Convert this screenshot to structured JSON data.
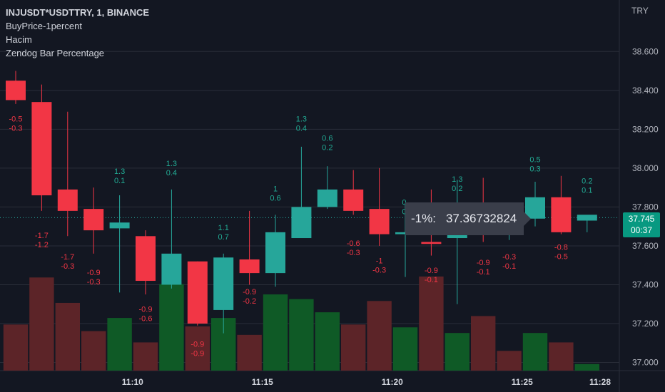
{
  "header": {
    "symbol": "INJUSDT*USDTTRY, 1, BINANCE",
    "indicators": [
      "BuyPrice-1percent",
      "Hacim",
      "Zendog Bar Percentage"
    ]
  },
  "price_axis": {
    "currency": "TRY"
  },
  "current_price": {
    "value": "37.745",
    "countdown": "00:37"
  },
  "tooltip": {
    "label": "-1%:",
    "value": "37.36732824"
  },
  "colors": {
    "background": "#131722",
    "up": "#26a69a",
    "down": "#f23645",
    "grid": "#2a2e39"
  },
  "chart_data": {
    "type": "candlestick",
    "ylim": [
      36.98,
      38.7
    ],
    "y_ticks": [
      "38.600",
      "38.400",
      "38.200",
      "38.000",
      "37.800",
      "37.600",
      "37.400",
      "37.200",
      "37.000"
    ],
    "y_tick_values": [
      38.6,
      38.4,
      38.2,
      38.0,
      37.8,
      37.6,
      37.4,
      37.2,
      37.0
    ],
    "x_ticks": [
      {
        "label": "11:10",
        "index": 4.5
      },
      {
        "label": "11:15",
        "index": 9.5
      },
      {
        "label": "11:20",
        "index": 14.5
      },
      {
        "label": "11:25",
        "index": 19.5
      },
      {
        "label": "11:28",
        "index": 22.5
      }
    ],
    "candles": [
      {
        "o": 38.45,
        "h": 38.5,
        "l": 38.33,
        "c": 38.35
      },
      {
        "o": 38.34,
        "h": 38.43,
        "l": 37.78,
        "c": 37.86
      },
      {
        "o": 37.89,
        "h": 38.29,
        "l": 37.65,
        "c": 37.78
      },
      {
        "o": 37.79,
        "h": 37.9,
        "l": 37.56,
        "c": 37.68
      },
      {
        "o": 37.69,
        "h": 37.86,
        "l": 37.36,
        "c": 37.72
      },
      {
        "o": 37.65,
        "h": 37.68,
        "l": 37.35,
        "c": 37.42
      },
      {
        "o": 37.4,
        "h": 37.89,
        "l": 37.38,
        "c": 37.56
      },
      {
        "o": 37.52,
        "h": 37.52,
        "l": 37.19,
        "c": 37.2
      },
      {
        "o": 37.27,
        "h": 37.56,
        "l": 37.15,
        "c": 37.54
      },
      {
        "o": 37.53,
        "h": 37.78,
        "l": 37.4,
        "c": 37.46
      },
      {
        "o": 37.46,
        "h": 37.76,
        "l": 37.39,
        "c": 37.67
      },
      {
        "o": 37.64,
        "h": 38.11,
        "l": 37.64,
        "c": 37.8
      },
      {
        "o": 37.8,
        "h": 38.01,
        "l": 37.79,
        "c": 37.89
      },
      {
        "o": 37.89,
        "h": 37.99,
        "l": 37.76,
        "c": 37.78
      },
      {
        "o": 37.79,
        "h": 38.0,
        "l": 37.6,
        "c": 37.66
      },
      {
        "o": 37.66,
        "h": 37.82,
        "l": 37.44,
        "c": 37.67
      },
      {
        "o": 37.62,
        "h": 37.89,
        "l": 37.55,
        "c": 37.61
      },
      {
        "o": 37.64,
        "h": 37.94,
        "l": 37.3,
        "c": 37.67
      },
      {
        "o": 37.76,
        "h": 37.95,
        "l": 37.62,
        "c": 37.72
      },
      {
        "o": 37.72,
        "h": 37.82,
        "l": 37.63,
        "c": 37.74
      },
      {
        "o": 37.74,
        "h": 37.93,
        "l": 37.7,
        "c": 37.85
      },
      {
        "o": 37.85,
        "h": 37.96,
        "l": 37.66,
        "c": 37.67
      },
      {
        "o": 37.73,
        "h": 37.75,
        "l": 37.67,
        "c": 37.76
      }
    ],
    "volume": [
      {
        "v": 0.49,
        "up": false
      },
      {
        "v": 0.99,
        "up": false
      },
      {
        "v": 0.72,
        "up": false
      },
      {
        "v": 0.42,
        "up": false
      },
      {
        "v": 0.56,
        "up": true
      },
      {
        "v": 0.3,
        "up": false
      },
      {
        "v": 0.92,
        "up": true
      },
      {
        "v": 0.47,
        "up": false
      },
      {
        "v": 0.56,
        "up": true
      },
      {
        "v": 0.38,
        "up": false
      },
      {
        "v": 0.81,
        "up": true
      },
      {
        "v": 0.76,
        "up": true
      },
      {
        "v": 0.62,
        "up": true
      },
      {
        "v": 0.49,
        "up": false
      },
      {
        "v": 0.74,
        "up": false
      },
      {
        "v": 0.46,
        "up": true
      },
      {
        "v": 1.0,
        "up": false
      },
      {
        "v": 0.4,
        "up": true
      },
      {
        "v": 0.58,
        "up": false
      },
      {
        "v": 0.21,
        "up": false
      },
      {
        "v": 0.4,
        "up": true
      },
      {
        "v": 0.3,
        "up": false
      },
      {
        "v": 0.07,
        "up": true
      }
    ],
    "bar_percent_labels": [
      {
        "i": 0,
        "lines": [
          "-0.5",
          "-0.3"
        ],
        "price": 38.24,
        "up": false
      },
      {
        "i": 1,
        "lines": [
          "-1.7",
          "-1.2"
        ],
        "price": 37.64,
        "up": false
      },
      {
        "i": 2,
        "lines": [
          "-1.7",
          "-0.3"
        ],
        "price": 37.53,
        "up": false
      },
      {
        "i": 3,
        "lines": [
          "-0.9",
          "-0.3"
        ],
        "price": 37.45,
        "up": false
      },
      {
        "i": 4,
        "lines": [
          "1.3",
          "0.1"
        ],
        "price": 37.97,
        "up": true
      },
      {
        "i": 5,
        "lines": [
          "-0.9",
          "-0.6"
        ],
        "price": 37.26,
        "up": false
      },
      {
        "i": 6,
        "lines": [
          "1.3",
          "0.4"
        ],
        "price": 38.01,
        "up": true
      },
      {
        "i": 7,
        "lines": [
          "-0.9",
          "-0.9"
        ],
        "price": 37.08,
        "up": false
      },
      {
        "i": 8,
        "lines": [
          "1.1",
          "0.7"
        ],
        "price": 37.68,
        "up": true
      },
      {
        "i": 9,
        "lines": [
          "-0.9",
          "-0.2"
        ],
        "price": 37.35,
        "up": false
      },
      {
        "i": 10,
        "lines": [
          "1",
          "0.6"
        ],
        "price": 37.88,
        "up": true
      },
      {
        "i": 11,
        "lines": [
          "1.3",
          "0.4"
        ],
        "price": 38.24,
        "up": true
      },
      {
        "i": 12,
        "lines": [
          "0.6",
          "0.2"
        ],
        "price": 38.14,
        "up": true
      },
      {
        "i": 13,
        "lines": [
          "-0.6",
          "-0.3"
        ],
        "price": 37.6,
        "up": false
      },
      {
        "i": 14,
        "lines": [
          "-1",
          "-0.3"
        ],
        "price": 37.51,
        "up": false
      },
      {
        "i": 15,
        "lines": [
          "0.",
          "0."
        ],
        "price": 37.81,
        "up": true
      },
      {
        "i": 16,
        "lines": [
          "-0.9",
          "-0.1"
        ],
        "price": 37.46,
        "up": false
      },
      {
        "i": 17,
        "lines": [
          "1.3",
          "0.2"
        ],
        "price": 37.93,
        "up": true
      },
      {
        "i": 18,
        "lines": [
          "-0.9",
          "-0.1"
        ],
        "price": 37.5,
        "up": false
      },
      {
        "i": 19,
        "lines": [
          "-0.3",
          "-0.1"
        ],
        "price": 37.53,
        "up": false
      },
      {
        "i": 20,
        "lines": [
          "0.5",
          "0.3"
        ],
        "price": 38.03,
        "up": true
      },
      {
        "i": 21,
        "lines": [
          "-0.8",
          "-0.5"
        ],
        "price": 37.58,
        "up": false
      },
      {
        "i": 22,
        "lines": [
          "0.2",
          "0.1"
        ],
        "price": 37.92,
        "up": true
      }
    ]
  }
}
